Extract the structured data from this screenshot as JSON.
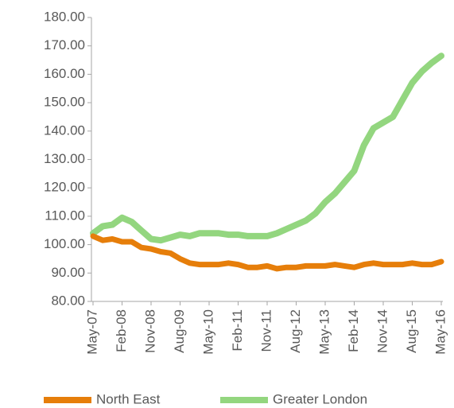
{
  "chart_data": {
    "type": "line",
    "categories": [
      "May-07",
      null,
      null,
      "Feb-08",
      null,
      null,
      "Nov-08",
      null,
      null,
      "Aug-09",
      null,
      null,
      "May-10",
      null,
      null,
      "Feb-11",
      null,
      null,
      "Nov-11",
      null,
      null,
      "Aug-12",
      null,
      null,
      "May-13",
      null,
      null,
      "Feb-14",
      null,
      null,
      "Nov-14",
      null,
      null,
      "Aug-15",
      null,
      null,
      "May-16"
    ],
    "series": [
      {
        "name": "North East",
        "color": "#e67e0a",
        "values": [
          103,
          101.5,
          102,
          101,
          101,
          99,
          98.5,
          97.5,
          97,
          95,
          93.5,
          93,
          93,
          93,
          93.5,
          93,
          92,
          92,
          92.5,
          91.5,
          92,
          92,
          92.5,
          92.5,
          92.5,
          93,
          92.5,
          92,
          93,
          93.5,
          93,
          93,
          93,
          93.5,
          93,
          93,
          94
        ]
      },
      {
        "name": "Greater London",
        "color": "#93d67f",
        "values": [
          104,
          106.5,
          107,
          109.5,
          108,
          105,
          102,
          101.5,
          102.5,
          103.5,
          103,
          104,
          104,
          104,
          103.5,
          103.5,
          103,
          103,
          103,
          104,
          105.5,
          107,
          108.5,
          111,
          115,
          118,
          122,
          126,
          135,
          141,
          143,
          145,
          151,
          157,
          161,
          164,
          166.5
        ]
      }
    ],
    "ylim": [
      80,
      180
    ],
    "yticks": [
      {
        "value": 80,
        "label": "80.00"
      },
      {
        "value": 90,
        "label": "90.00"
      },
      {
        "value": 100,
        "label": "100.00"
      },
      {
        "value": 110,
        "label": "110.00"
      },
      {
        "value": 120,
        "label": "120.00"
      },
      {
        "value": 130,
        "label": "130.00"
      },
      {
        "value": 140,
        "label": "140.00"
      },
      {
        "value": 150,
        "label": "150.00"
      },
      {
        "value": 160,
        "label": "160.00"
      },
      {
        "value": 170,
        "label": "170.00"
      },
      {
        "value": 180,
        "label": "180.00"
      }
    ],
    "grid": false,
    "legend": "bottom"
  }
}
